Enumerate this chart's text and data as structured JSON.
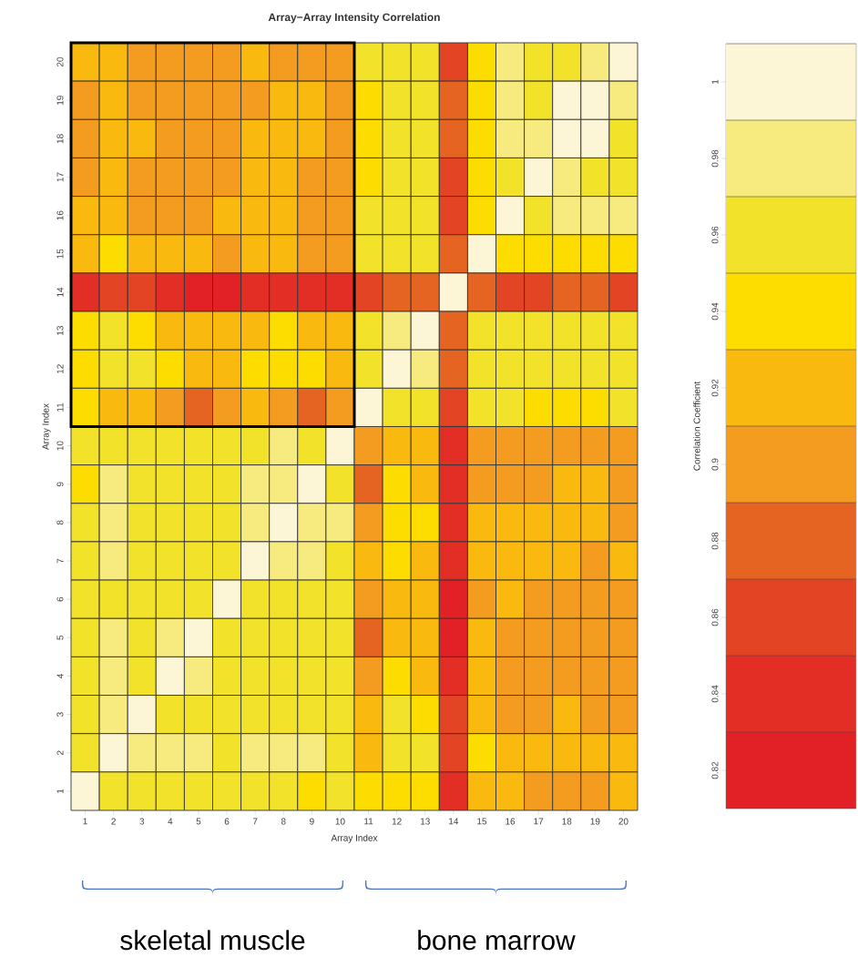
{
  "chart_data": {
    "type": "heatmap",
    "title": "Array−Array Intensity Correlation",
    "xlabel": "Array Index",
    "ylabel": "Array Index",
    "clabel": "Correlation Coefficient",
    "categories": [
      "1",
      "2",
      "3",
      "4",
      "5",
      "6",
      "7",
      "8",
      "9",
      "10",
      "11",
      "12",
      "13",
      "14",
      "15",
      "16",
      "17",
      "18",
      "19",
      "20"
    ],
    "y_categories": [
      "20",
      "19",
      "18",
      "17",
      "16",
      "15",
      "14",
      "13",
      "12",
      "11",
      "10",
      "9",
      "8",
      "7",
      "6",
      "5",
      "4",
      "3",
      "2",
      "1"
    ],
    "cells": [
      [
        0.92,
        0.92,
        0.9,
        0.9,
        0.9,
        0.9,
        0.92,
        0.9,
        0.9,
        0.9,
        0.96,
        0.96,
        0.96,
        0.86,
        0.94,
        0.98,
        0.96,
        0.96,
        0.98,
        1
      ],
      [
        0.9,
        0.92,
        0.9,
        0.9,
        0.9,
        0.9,
        0.9,
        0.92,
        0.92,
        0.9,
        0.94,
        0.96,
        0.96,
        0.88,
        0.94,
        0.98,
        0.96,
        1,
        1,
        0.98
      ],
      [
        0.9,
        0.92,
        0.92,
        0.9,
        0.9,
        0.9,
        0.92,
        0.92,
        0.92,
        0.9,
        0.94,
        0.96,
        0.96,
        0.88,
        0.94,
        0.98,
        0.98,
        1,
        1,
        0.96
      ],
      [
        0.9,
        0.92,
        0.9,
        0.9,
        0.9,
        0.9,
        0.92,
        0.92,
        0.9,
        0.9,
        0.94,
        0.96,
        0.96,
        0.86,
        0.94,
        0.96,
        1,
        0.98,
        0.96,
        0.96
      ],
      [
        0.92,
        0.92,
        0.9,
        0.9,
        0.9,
        0.92,
        0.92,
        0.92,
        0.9,
        0.9,
        0.96,
        0.96,
        0.96,
        0.86,
        0.94,
        1,
        0.96,
        0.98,
        0.98,
        0.98
      ],
      [
        0.92,
        0.94,
        0.92,
        0.92,
        0.92,
        0.9,
        0.92,
        0.92,
        0.9,
        0.9,
        0.96,
        0.96,
        0.96,
        0.88,
        1,
        0.94,
        0.94,
        0.94,
        0.94,
        0.94
      ],
      [
        0.84,
        0.86,
        0.86,
        0.84,
        0.82,
        0.82,
        0.84,
        0.84,
        0.84,
        0.84,
        0.86,
        0.88,
        0.88,
        1,
        0.88,
        0.86,
        0.86,
        0.88,
        0.88,
        0.86
      ],
      [
        0.94,
        0.96,
        0.94,
        0.92,
        0.92,
        0.92,
        0.92,
        0.94,
        0.92,
        0.92,
        0.96,
        0.98,
        1,
        0.88,
        0.96,
        0.96,
        0.96,
        0.96,
        0.96,
        0.96
      ],
      [
        0.94,
        0.96,
        0.96,
        0.94,
        0.92,
        0.92,
        0.94,
        0.94,
        0.94,
        0.92,
        0.96,
        1,
        0.98,
        0.88,
        0.96,
        0.96,
        0.96,
        0.96,
        0.96,
        0.96
      ],
      [
        0.94,
        0.92,
        0.92,
        0.9,
        0.88,
        0.9,
        0.92,
        0.9,
        0.88,
        0.9,
        1,
        0.96,
        0.96,
        0.86,
        0.96,
        0.96,
        0.94,
        0.94,
        0.94,
        0.96
      ],
      [
        0.96,
        0.96,
        0.96,
        0.96,
        0.96,
        0.96,
        0.96,
        0.98,
        0.96,
        1,
        0.9,
        0.92,
        0.92,
        0.84,
        0.9,
        0.9,
        0.9,
        0.9,
        0.9,
        0.9
      ],
      [
        0.94,
        0.98,
        0.96,
        0.96,
        0.96,
        0.96,
        0.98,
        0.98,
        1,
        0.96,
        0.88,
        0.94,
        0.92,
        0.84,
        0.9,
        0.9,
        0.9,
        0.92,
        0.92,
        0.9
      ],
      [
        0.96,
        0.98,
        0.96,
        0.96,
        0.96,
        0.96,
        0.98,
        1,
        0.98,
        0.98,
        0.9,
        0.94,
        0.94,
        0.84,
        0.92,
        0.92,
        0.92,
        0.92,
        0.92,
        0.9
      ],
      [
        0.96,
        0.98,
        0.96,
        0.96,
        0.96,
        0.96,
        1,
        0.98,
        0.98,
        0.96,
        0.92,
        0.94,
        0.92,
        0.84,
        0.92,
        0.92,
        0.92,
        0.92,
        0.9,
        0.92
      ],
      [
        0.96,
        0.96,
        0.96,
        0.96,
        0.96,
        1,
        0.96,
        0.96,
        0.96,
        0.96,
        0.9,
        0.92,
        0.92,
        0.82,
        0.9,
        0.92,
        0.9,
        0.9,
        0.9,
        0.9
      ],
      [
        0.96,
        0.98,
        0.96,
        0.98,
        1,
        0.96,
        0.96,
        0.96,
        0.96,
        0.96,
        0.88,
        0.92,
        0.92,
        0.82,
        0.92,
        0.9,
        0.9,
        0.9,
        0.9,
        0.9
      ],
      [
        0.96,
        0.98,
        0.96,
        1,
        0.98,
        0.96,
        0.96,
        0.96,
        0.96,
        0.96,
        0.9,
        0.94,
        0.92,
        0.84,
        0.92,
        0.9,
        0.9,
        0.9,
        0.9,
        0.9
      ],
      [
        0.96,
        0.98,
        1,
        0.96,
        0.96,
        0.96,
        0.96,
        0.96,
        0.96,
        0.96,
        0.92,
        0.96,
        0.94,
        0.86,
        0.92,
        0.9,
        0.9,
        0.92,
        0.9,
        0.9
      ],
      [
        0.96,
        1,
        0.98,
        0.98,
        0.98,
        0.96,
        0.98,
        0.98,
        0.98,
        0.96,
        0.92,
        0.96,
        0.96,
        0.86,
        0.94,
        0.92,
        0.92,
        0.92,
        0.92,
        0.92
      ],
      [
        1,
        0.96,
        0.96,
        0.96,
        0.96,
        0.96,
        0.96,
        0.96,
        0.94,
        0.96,
        0.94,
        0.94,
        0.94,
        0.84,
        0.92,
        0.92,
        0.9,
        0.9,
        0.9,
        0.92
      ]
    ],
    "clim": [
      0.81,
      1.01
    ],
    "cticks": [
      0.82,
      0.84,
      0.86,
      0.88,
      0.9,
      0.92,
      0.94,
      0.96,
      0.98,
      1
    ],
    "colors": [
      "#e22126",
      "#e22e24",
      "#e34423",
      "#e66421",
      "#f39c1f",
      "#f9b90f",
      "#fddc00",
      "#f3e22a",
      "#f7ea7e",
      "#fdf6d6"
    ],
    "annotations": [
      "skeletal muscle",
      "bone marrow"
    ]
  }
}
